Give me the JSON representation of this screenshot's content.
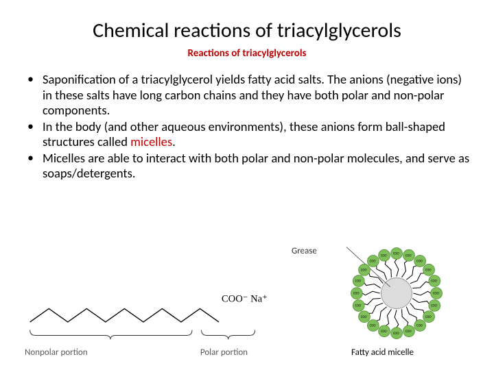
{
  "title": "Chemical reactions of triacylglycerols",
  "subtitle": "Reactions of triacylglycerols",
  "subtitle_color": "#c00000",
  "bullets": [
    {
      "pre": "Saponification of a triacylglycerol yields fatty acid salts.  The anions (negative ions) in these salts have long carbon chains and they have both polar and non-polar components.",
      "hl": "",
      "post": ""
    },
    {
      "pre": "In the body (and other aqueous environments), these anions form ball-shaped structures called ",
      "hl": "micelles",
      "post": "."
    },
    {
      "pre": "Micelles are able to interact with both polar and non-polar molecules, and serve as soaps/detergents.",
      "hl": "",
      "post": ""
    }
  ],
  "fatty_acid_diagram": {
    "type": "line-diagram",
    "zigzag_peaks": 10,
    "stroke": "#000000",
    "stroke_width": 1.4,
    "charge_label": "COO⁻  Na⁺",
    "nonpolar_label": "Nonpolar portion",
    "polar_label": "Polar portion",
    "label_color": "#595959",
    "brace_color": "#333333"
  },
  "micelle_diagram": {
    "type": "radial-infographic",
    "head_count": 20,
    "head_radius": 9,
    "ring_radius": 62,
    "core_radius": 24,
    "head_fill": "#7fbf5a",
    "head_stroke": "#4a8a2f",
    "head_text": "COO⁻",
    "head_text_color": "#000000",
    "head_font_size": 5,
    "tail_color": "#000000",
    "tail_width": 1.1,
    "core_fill": "#dcdcdc",
    "core_stroke": "#9a9a9a",
    "grease_label": "Grease",
    "caption": "Fatty acid micelle"
  },
  "colors": {
    "background": "#ffffff",
    "text": "#000000",
    "accent": "#c00000"
  }
}
